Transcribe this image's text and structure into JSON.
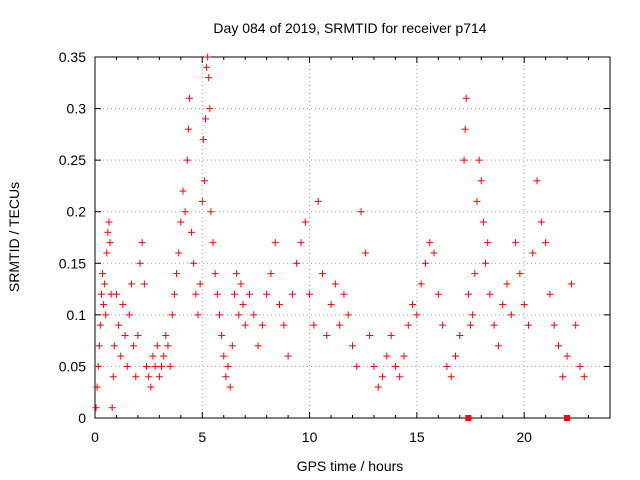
{
  "chart_data": {
    "type": "scatter",
    "title": "Day 084 of 2019, SRMTID for receiver p714",
    "xlabel": "GPS time / hours",
    "ylabel": "SRMTID / TECUs",
    "xlim": [
      0,
      24
    ],
    "ylim": [
      0,
      0.35
    ],
    "x_ticks": [
      0,
      5,
      10,
      15,
      20
    ],
    "x_tick_labels": [
      "0",
      "5",
      "10",
      "15",
      "20"
    ],
    "y_ticks": [
      0,
      0.05,
      0.1,
      0.15,
      0.2,
      0.25,
      0.3,
      0.35
    ],
    "y_tick_labels": [
      "0",
      "0.05",
      "0.1",
      "0.15",
      "0.2",
      "0.25",
      "0.3",
      "0.35"
    ],
    "grid": true,
    "marker": "plus",
    "series": [
      {
        "name": "SRMTID",
        "color": "#ff0000",
        "points": [
          [
            0.05,
            0.01
          ],
          [
            0.1,
            0.03
          ],
          [
            0.15,
            0.05
          ],
          [
            0.2,
            0.07
          ],
          [
            0.25,
            0.09
          ],
          [
            0.3,
            0.12
          ],
          [
            0.35,
            0.14
          ],
          [
            0.4,
            0.11
          ],
          [
            0.45,
            0.13
          ],
          [
            0.5,
            0.1
          ],
          [
            0.55,
            0.16
          ],
          [
            0.6,
            0.18
          ],
          [
            0.65,
            0.19
          ],
          [
            0.7,
            0.17
          ],
          [
            0.75,
            0.12
          ],
          [
            0.8,
            0.01
          ],
          [
            0.85,
            0.04
          ],
          [
            0.9,
            0.07
          ],
          [
            1.0,
            0.12
          ],
          [
            1.1,
            0.09
          ],
          [
            1.2,
            0.06
          ],
          [
            1.3,
            0.11
          ],
          [
            1.4,
            0.08
          ],
          [
            1.5,
            0.05
          ],
          [
            1.6,
            0.1
          ],
          [
            1.7,
            0.13
          ],
          [
            1.8,
            0.07
          ],
          [
            1.9,
            0.04
          ],
          [
            2.0,
            0.08
          ],
          [
            2.1,
            0.15
          ],
          [
            2.2,
            0.17
          ],
          [
            2.3,
            0.13
          ],
          [
            2.4,
            0.05
          ],
          [
            2.5,
            0.04
          ],
          [
            2.6,
            0.03
          ],
          [
            2.7,
            0.06
          ],
          [
            2.8,
            0.05
          ],
          [
            2.9,
            0.07
          ],
          [
            3.0,
            0.04
          ],
          [
            3.1,
            0.05
          ],
          [
            3.2,
            0.06
          ],
          [
            3.3,
            0.08
          ],
          [
            3.4,
            0.07
          ],
          [
            3.5,
            0.05
          ],
          [
            3.6,
            0.1
          ],
          [
            3.7,
            0.12
          ],
          [
            3.8,
            0.14
          ],
          [
            3.9,
            0.16
          ],
          [
            4.0,
            0.19
          ],
          [
            4.1,
            0.22
          ],
          [
            4.2,
            0.2
          ],
          [
            4.3,
            0.25
          ],
          [
            4.35,
            0.28
          ],
          [
            4.4,
            0.31
          ],
          [
            4.5,
            0.18
          ],
          [
            4.6,
            0.15
          ],
          [
            4.7,
            0.12
          ],
          [
            4.8,
            0.1
          ],
          [
            4.9,
            0.13
          ],
          [
            5.0,
            0.21
          ],
          [
            5.05,
            0.27
          ],
          [
            5.1,
            0.23
          ],
          [
            5.15,
            0.29
          ],
          [
            5.2,
            0.34
          ],
          [
            5.25,
            0.35
          ],
          [
            5.3,
            0.33
          ],
          [
            5.35,
            0.3
          ],
          [
            5.4,
            0.2
          ],
          [
            5.5,
            0.17
          ],
          [
            5.6,
            0.14
          ],
          [
            5.7,
            0.12
          ],
          [
            5.8,
            0.1
          ],
          [
            5.9,
            0.08
          ],
          [
            6.0,
            0.06
          ],
          [
            6.1,
            0.04
          ],
          [
            6.2,
            0.05
          ],
          [
            6.3,
            0.03
          ],
          [
            6.4,
            0.07
          ],
          [
            6.5,
            0.12
          ],
          [
            6.6,
            0.14
          ],
          [
            6.7,
            0.1
          ],
          [
            6.8,
            0.13
          ],
          [
            6.9,
            0.11
          ],
          [
            7.0,
            0.09
          ],
          [
            7.2,
            0.12
          ],
          [
            7.4,
            0.1
          ],
          [
            7.6,
            0.07
          ],
          [
            7.8,
            0.09
          ],
          [
            8.0,
            0.12
          ],
          [
            8.2,
            0.14
          ],
          [
            8.4,
            0.17
          ],
          [
            8.6,
            0.11
          ],
          [
            8.8,
            0.09
          ],
          [
            9.0,
            0.06
          ],
          [
            9.2,
            0.12
          ],
          [
            9.4,
            0.15
          ],
          [
            9.6,
            0.17
          ],
          [
            9.8,
            0.19
          ],
          [
            10.0,
            0.12
          ],
          [
            10.2,
            0.09
          ],
          [
            10.4,
            0.21
          ],
          [
            10.6,
            0.14
          ],
          [
            10.8,
            0.08
          ],
          [
            11.0,
            0.11
          ],
          [
            11.2,
            0.13
          ],
          [
            11.4,
            0.09
          ],
          [
            11.6,
            0.12
          ],
          [
            11.8,
            0.1
          ],
          [
            12.0,
            0.07
          ],
          [
            12.2,
            0.05
          ],
          [
            12.4,
            0.2
          ],
          [
            12.6,
            0.16
          ],
          [
            12.8,
            0.08
          ],
          [
            13.0,
            0.05
          ],
          [
            13.2,
            0.03
          ],
          [
            13.4,
            0.04
          ],
          [
            13.6,
            0.06
          ],
          [
            13.8,
            0.08
          ],
          [
            14.0,
            0.05
          ],
          [
            14.2,
            0.04
          ],
          [
            14.4,
            0.06
          ],
          [
            14.6,
            0.09
          ],
          [
            14.8,
            0.11
          ],
          [
            15.0,
            0.1
          ],
          [
            15.2,
            0.13
          ],
          [
            15.4,
            0.15
          ],
          [
            15.6,
            0.17
          ],
          [
            15.8,
            0.16
          ],
          [
            16.0,
            0.12
          ],
          [
            16.2,
            0.09
          ],
          [
            16.4,
            0.05
          ],
          [
            16.6,
            0.04
          ],
          [
            16.8,
            0.06
          ],
          [
            17.0,
            0.08
          ],
          [
            17.2,
            0.25
          ],
          [
            17.25,
            0.28
          ],
          [
            17.3,
            0.31
          ],
          [
            17.4,
            0.12
          ],
          [
            17.5,
            0.09
          ],
          [
            17.6,
            0.1
          ],
          [
            17.7,
            0.14
          ],
          [
            17.8,
            0.21
          ],
          [
            17.9,
            0.25
          ],
          [
            18.0,
            0.23
          ],
          [
            18.1,
            0.19
          ],
          [
            18.2,
            0.15
          ],
          [
            18.3,
            0.17
          ],
          [
            18.4,
            0.12
          ],
          [
            18.6,
            0.09
          ],
          [
            18.8,
            0.07
          ],
          [
            19.0,
            0.11
          ],
          [
            19.2,
            0.13
          ],
          [
            19.4,
            0.1
          ],
          [
            19.6,
            0.17
          ],
          [
            19.8,
            0.14
          ],
          [
            20.0,
            0.11
          ],
          [
            20.2,
            0.09
          ],
          [
            20.4,
            0.16
          ],
          [
            20.6,
            0.23
          ],
          [
            20.8,
            0.19
          ],
          [
            21.0,
            0.17
          ],
          [
            21.2,
            0.12
          ],
          [
            21.4,
            0.09
          ],
          [
            21.6,
            0.07
          ],
          [
            21.8,
            0.04
          ],
          [
            22.0,
            0.06
          ],
          [
            22.2,
            0.13
          ],
          [
            22.4,
            0.09
          ],
          [
            22.6,
            0.05
          ],
          [
            22.8,
            0.04
          ]
        ]
      }
    ],
    "baseline_markers": [
      17.4,
      22.0
    ]
  }
}
